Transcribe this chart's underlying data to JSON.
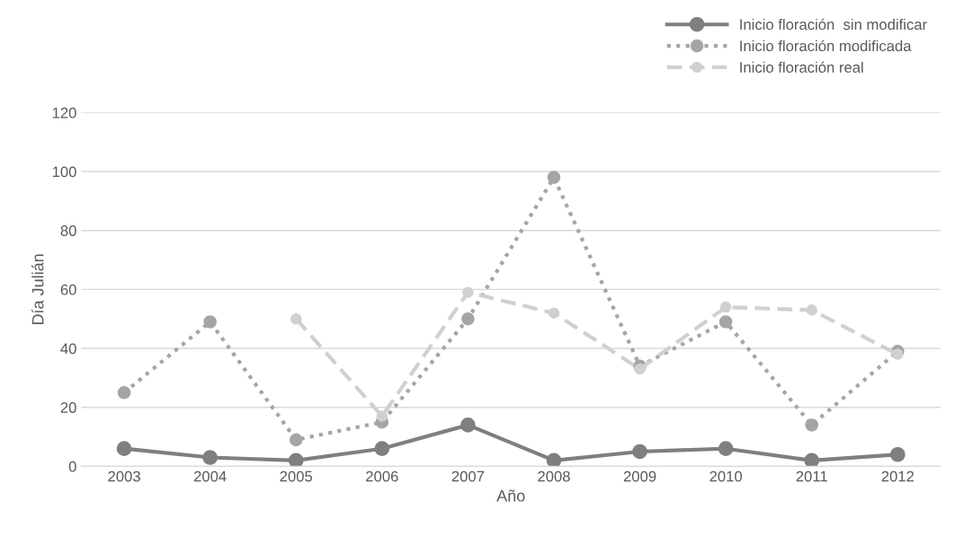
{
  "chart_data": {
    "type": "line",
    "xlabel": "Año",
    "ylabel": "Día Julián",
    "categories": [
      "2003",
      "2004",
      "2005",
      "2006",
      "2007",
      "2008",
      "2009",
      "2010",
      "2011",
      "2012"
    ],
    "series": [
      {
        "name": "Inicio floración  sin modificar",
        "color": "#7f7f7f",
        "line_style": "solid",
        "values": [
          6,
          3,
          2,
          6,
          14,
          2,
          5,
          6,
          2,
          4
        ]
      },
      {
        "name": "Inicio floración modificada",
        "color": "#a5a5a5",
        "line_style": "dotted",
        "values": [
          25,
          49,
          9,
          15,
          50,
          98,
          34,
          49,
          14,
          39
        ]
      },
      {
        "name": "Inicio floración real",
        "color": "#d0d0d0",
        "line_style": "dashed",
        "values": [
          null,
          null,
          50,
          17,
          59,
          52,
          33,
          54,
          53,
          38
        ]
      }
    ],
    "ylim": [
      0,
      120
    ],
    "yticks": [
      0,
      20,
      40,
      60,
      80,
      100,
      120
    ],
    "grid": "y",
    "legend": "top right",
    "marker": "circle"
  }
}
